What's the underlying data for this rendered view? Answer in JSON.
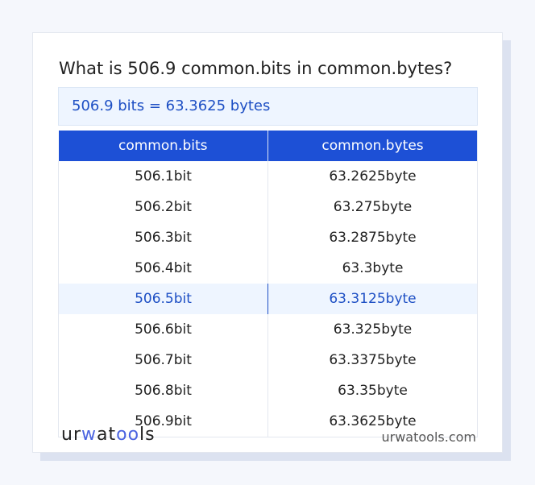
{
  "title": "What is 506.9 common.bits in common.bytes?",
  "result": "506.9 bits = 63.3625 bytes",
  "table": {
    "headers": [
      "common.bits",
      "common.bytes"
    ],
    "rows": [
      [
        "506.1bit",
        "63.2625byte"
      ],
      [
        "506.2bit",
        "63.275byte"
      ],
      [
        "506.3bit",
        "63.2875byte"
      ],
      [
        "506.4bit",
        "63.3byte"
      ],
      [
        "506.5bit",
        "63.3125byte"
      ],
      [
        "506.6bit",
        "63.325byte"
      ],
      [
        "506.7bit",
        "63.3375byte"
      ],
      [
        "506.8bit",
        "63.35byte"
      ],
      [
        "506.9bit",
        "63.3625byte"
      ]
    ],
    "highlighted_row": 4
  },
  "footer": {
    "logo": "urwatools",
    "site": "urwatools.com"
  },
  "colors": {
    "accent": "#1d50d6",
    "highlight_bg": "#eef5ff"
  }
}
